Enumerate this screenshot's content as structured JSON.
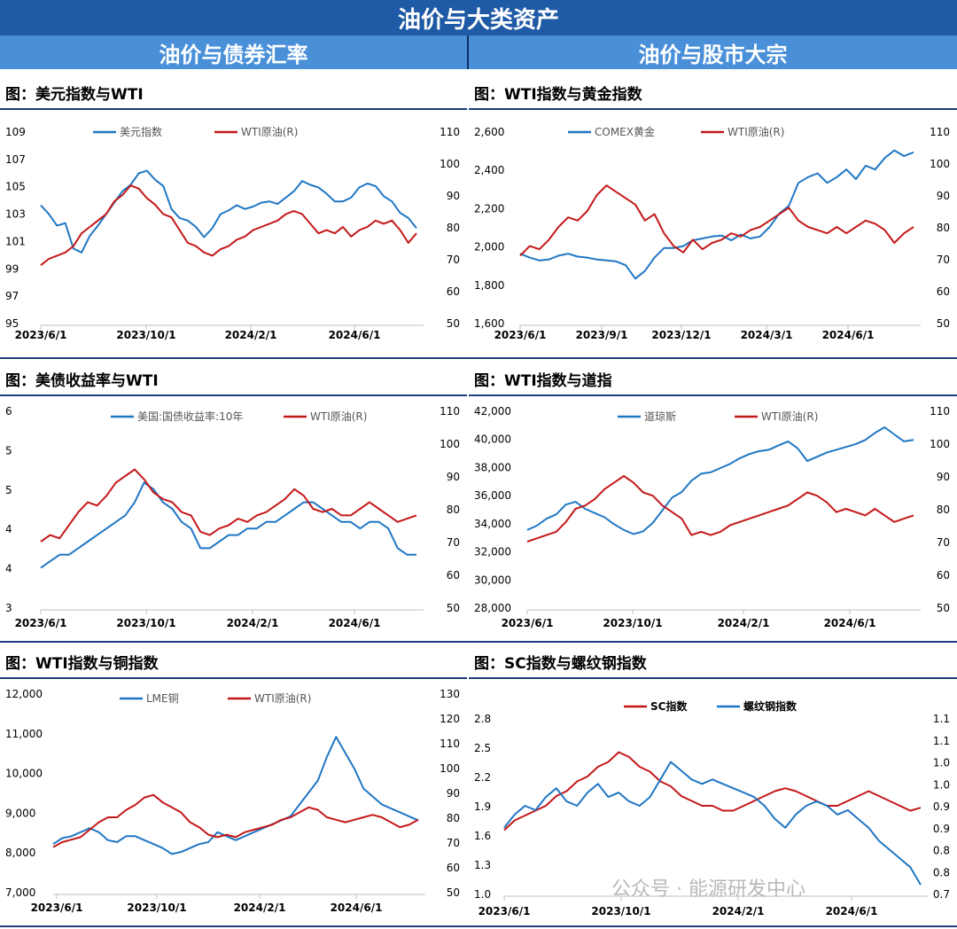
{
  "header": {
    "title": "油价与大类资产",
    "left_column": "油价与债券汇率",
    "right_column": "油价与股市大宗"
  },
  "watermark": "公众号 · 能源研发中心",
  "colors": {
    "blue": "#1f77c4",
    "red": "#c41818",
    "header_dark": "#1f5aa6",
    "header_light": "#4a90d9"
  },
  "chart_data": [
    {
      "id": "usd",
      "type": "line",
      "title": "图：美元指数与WTI",
      "x_ticks": [
        "2023/6/1",
        "2023/10/1",
        "2024/2/1",
        "2024/6/1"
      ],
      "y_left": {
        "ticks": [
          "109",
          "107",
          "105",
          "103",
          "101",
          "99",
          "97",
          "95"
        ],
        "min": 95,
        "max": 110
      },
      "y_right": {
        "ticks": [
          "110",
          "100",
          "90",
          "80",
          "70",
          "60",
          "50"
        ],
        "min": 50,
        "max": 110
      },
      "series": [
        {
          "name": "美元指数",
          "axis": "left",
          "color": "#1f77c4",
          "values": [
            104.2,
            103.5,
            102.6,
            102.8,
            100.8,
            100.5,
            101.8,
            102.6,
            103.5,
            104.4,
            105.3,
            105.8,
            106.7,
            106.9,
            106.2,
            105.7,
            103.9,
            103.2,
            103.0,
            102.5,
            101.7,
            102.4,
            103.5,
            103.8,
            104.2,
            103.9,
            104.1,
            104.4,
            104.5,
            104.3,
            104.8,
            105.3,
            106.1,
            105.8,
            105.6,
            105.1,
            104.5,
            104.5,
            104.8,
            105.6,
            105.9,
            105.7,
            104.9,
            104.5,
            103.6,
            103.2,
            102.4
          ]
        },
        {
          "name": "WTI原油(R)",
          "axis": "right",
          "color": "#c41818",
          "values": [
            68,
            70,
            71,
            72,
            74,
            78,
            80,
            82,
            84,
            88,
            90,
            93,
            92,
            89,
            87,
            84,
            83,
            79,
            75,
            74,
            72,
            71,
            73,
            74,
            76,
            77,
            79,
            80,
            81,
            82,
            84,
            85,
            84,
            81,
            78,
            79,
            78,
            80,
            77,
            79,
            80,
            82,
            81,
            82,
            79,
            75,
            78
          ]
        }
      ]
    },
    {
      "id": "gold",
      "type": "line",
      "title": "图：WTI指数与黄金指数",
      "x_ticks": [
        "2023/6/1",
        "2023/9/1",
        "2023/12/1",
        "2024/3/1",
        "2024/6/1"
      ],
      "y_left": {
        "ticks": [
          "2,600",
          "2,400",
          "2,200",
          "2,000",
          "1,800",
          "1,600"
        ],
        "min": 1600,
        "max": 2600
      },
      "y_right": {
        "ticks": [
          "110",
          "100",
          "90",
          "80",
          "70",
          "60",
          "50"
        ],
        "min": 50,
        "max": 110
      },
      "series": [
        {
          "name": "COMEX黄金",
          "axis": "left",
          "color": "#1f77c4",
          "values": [
            1960,
            1940,
            1925,
            1930,
            1950,
            1960,
            1945,
            1940,
            1930,
            1925,
            1920,
            1900,
            1830,
            1870,
            1940,
            1990,
            1990,
            2000,
            2030,
            2040,
            2050,
            2055,
            2030,
            2060,
            2040,
            2050,
            2100,
            2170,
            2210,
            2330,
            2360,
            2380,
            2330,
            2360,
            2400,
            2350,
            2420,
            2400,
            2460,
            2500,
            2470,
            2490
          ]
        },
        {
          "name": "WTI原油(R)",
          "axis": "right",
          "color": "#c41818",
          "values": [
            71,
            74,
            73,
            76,
            80,
            83,
            82,
            85,
            90,
            93,
            91,
            89,
            87,
            82,
            84,
            78,
            74,
            72,
            76,
            73,
            75,
            76,
            78,
            77,
            79,
            80,
            82,
            84,
            86,
            82,
            80,
            79,
            78,
            80,
            78,
            80,
            82,
            81,
            79,
            75,
            78,
            80
          ]
        }
      ]
    },
    {
      "id": "ust",
      "type": "line",
      "title": "图：美债收益率与WTI",
      "x_ticks": [
        "2023/6/1",
        "2023/10/1",
        "2024/2/1",
        "2024/6/1"
      ],
      "y_left": {
        "ticks": [
          "6",
          "5",
          "5",
          "4",
          "4",
          "3"
        ],
        "min": 3,
        "max": 6
      },
      "y_right": {
        "ticks": [
          "110",
          "100",
          "90",
          "80",
          "70",
          "60",
          "50"
        ],
        "min": 50,
        "max": 110
      },
      "series": [
        {
          "name": "美国:国债收益率:10年",
          "axis": "left",
          "color": "#1f77c4",
          "values": [
            3.6,
            3.7,
            3.8,
            3.8,
            3.9,
            4.0,
            4.1,
            4.2,
            4.3,
            4.4,
            4.6,
            4.9,
            4.8,
            4.6,
            4.5,
            4.3,
            4.2,
            3.9,
            3.9,
            4.0,
            4.1,
            4.1,
            4.2,
            4.2,
            4.3,
            4.3,
            4.4,
            4.5,
            4.6,
            4.6,
            4.5,
            4.4,
            4.3,
            4.3,
            4.2,
            4.3,
            4.3,
            4.2,
            3.9,
            3.8,
            3.8
          ]
        },
        {
          "name": "WTI原油(R)",
          "axis": "right",
          "color": "#c41818",
          "values": [
            70,
            72,
            71,
            75,
            79,
            82,
            81,
            84,
            88,
            90,
            92,
            89,
            85,
            83,
            82,
            79,
            78,
            73,
            72,
            74,
            75,
            77,
            76,
            78,
            79,
            81,
            83,
            86,
            84,
            80,
            79,
            80,
            78,
            78,
            80,
            82,
            80,
            78,
            76,
            77,
            78
          ]
        }
      ]
    },
    {
      "id": "dow",
      "type": "line",
      "title": "图：WTI指数与道指",
      "x_ticks": [
        "2023/6/1",
        "2023/10/1",
        "2024/2/1",
        "2024/6/1"
      ],
      "y_left": {
        "ticks": [
          "42,000",
          "40,000",
          "38,000",
          "36,000",
          "34,000",
          "32,000",
          "30,000",
          "28,000"
        ],
        "min": 28000,
        "max": 42000
      },
      "y_right": {
        "ticks": [
          "110",
          "100",
          "90",
          "80",
          "70",
          "60",
          "50"
        ],
        "min": 50,
        "max": 110
      },
      "series": [
        {
          "name": "道琼斯",
          "axis": "left",
          "color": "#1f77c4",
          "values": [
            33500,
            33800,
            34300,
            34600,
            35300,
            35500,
            35000,
            34700,
            34400,
            33900,
            33500,
            33200,
            33400,
            34000,
            34900,
            35800,
            36200,
            37000,
            37500,
            37600,
            37900,
            38200,
            38600,
            38900,
            39100,
            39200,
            39500,
            39800,
            39300,
            38400,
            38700,
            39000,
            39200,
            39400,
            39600,
            39900,
            40400,
            40800,
            40300,
            39800,
            39900
          ]
        },
        {
          "name": "WTI原油(R)",
          "axis": "right",
          "color": "#c41818",
          "values": [
            70,
            71,
            72,
            73,
            76,
            80,
            81,
            83,
            86,
            88,
            90,
            88,
            85,
            84,
            81,
            79,
            77,
            72,
            73,
            72,
            73,
            75,
            76,
            77,
            78,
            79,
            80,
            81,
            83,
            85,
            84,
            82,
            79,
            80,
            79,
            78,
            80,
            78,
            76,
            77,
            78
          ]
        }
      ]
    },
    {
      "id": "copper",
      "type": "line",
      "title": "图：WTI指数与铜指数",
      "x_ticks": [
        "2023/6/1",
        "2023/10/1",
        "2024/2/1",
        "2024/6/1"
      ],
      "y_left": {
        "ticks": [
          "12,000",
          "11,000",
          "10,000",
          "9,000",
          "8,000",
          "7,000"
        ],
        "min": 7000,
        "max": 12000
      },
      "y_right": {
        "ticks": [
          "130",
          "120",
          "110",
          "100",
          "90",
          "80",
          "70",
          "60",
          "50"
        ],
        "min": 50,
        "max": 130
      },
      "series": [
        {
          "name": "LME铜",
          "axis": "left",
          "color": "#1f77c4",
          "values": [
            8200,
            8350,
            8400,
            8500,
            8600,
            8500,
            8300,
            8250,
            8400,
            8400,
            8300,
            8200,
            8100,
            7950,
            8000,
            8100,
            8200,
            8250,
            8500,
            8400,
            8300,
            8400,
            8500,
            8600,
            8700,
            8800,
            8900,
            9200,
            9500,
            9800,
            10400,
            10900,
            10500,
            10100,
            9600,
            9400,
            9200,
            9100,
            9000,
            8900,
            8800
          ]
        },
        {
          "name": "WTI原油(R)",
          "axis": "right",
          "color": "#c41818",
          "values": [
            68,
            70,
            71,
            72,
            75,
            78,
            80,
            80,
            83,
            85,
            88,
            89,
            86,
            84,
            82,
            78,
            76,
            73,
            72,
            73,
            72,
            74,
            75,
            76,
            77,
            79,
            80,
            82,
            84,
            83,
            80,
            79,
            78,
            79,
            80,
            81,
            80,
            78,
            76,
            77,
            79
          ]
        }
      ]
    },
    {
      "id": "sc",
      "type": "line",
      "title": "图：SC指数与螺纹钢指数",
      "x_ticks": [
        "2023/6/1",
        "2023/10/1",
        "2024/2/1",
        "2024/6/1"
      ],
      "y_left": {
        "ticks": [
          "2.8",
          "2.5",
          "2.2",
          "1.9",
          "1.6",
          "1.3",
          "1.0"
        ],
        "min": 1.0,
        "max": 2.8
      },
      "y_right": {
        "ticks": [
          "1.1",
          "1.1",
          "1.0",
          "1.0",
          "0.9",
          "0.9",
          "0.8",
          "0.8",
          "0.7"
        ],
        "min": 0.7,
        "max": 1.1
      },
      "series": [
        {
          "name": "SC指数",
          "axis": "left",
          "color": "#c41818",
          "values": [
            1.65,
            1.75,
            1.8,
            1.85,
            1.9,
            2.0,
            2.05,
            2.15,
            2.2,
            2.3,
            2.35,
            2.45,
            2.4,
            2.3,
            2.25,
            2.15,
            2.1,
            2.0,
            1.95,
            1.9,
            1.9,
            1.85,
            1.85,
            1.9,
            1.95,
            2.0,
            2.05,
            2.08,
            2.05,
            2.0,
            1.95,
            1.9,
            1.9,
            1.95,
            2.0,
            2.05,
            2.0,
            1.95,
            1.9,
            1.85,
            1.88
          ]
        },
        {
          "name": "螺纹钢指数",
          "axis": "right",
          "color": "#1f77c4",
          "values": [
            0.85,
            0.88,
            0.9,
            0.89,
            0.92,
            0.94,
            0.91,
            0.9,
            0.93,
            0.95,
            0.92,
            0.93,
            0.91,
            0.9,
            0.92,
            0.96,
            1.0,
            0.98,
            0.96,
            0.95,
            0.96,
            0.95,
            0.94,
            0.93,
            0.92,
            0.9,
            0.87,
            0.85,
            0.88,
            0.9,
            0.91,
            0.9,
            0.88,
            0.89,
            0.87,
            0.85,
            0.82,
            0.8,
            0.78,
            0.76,
            0.72
          ]
        }
      ]
    }
  ]
}
